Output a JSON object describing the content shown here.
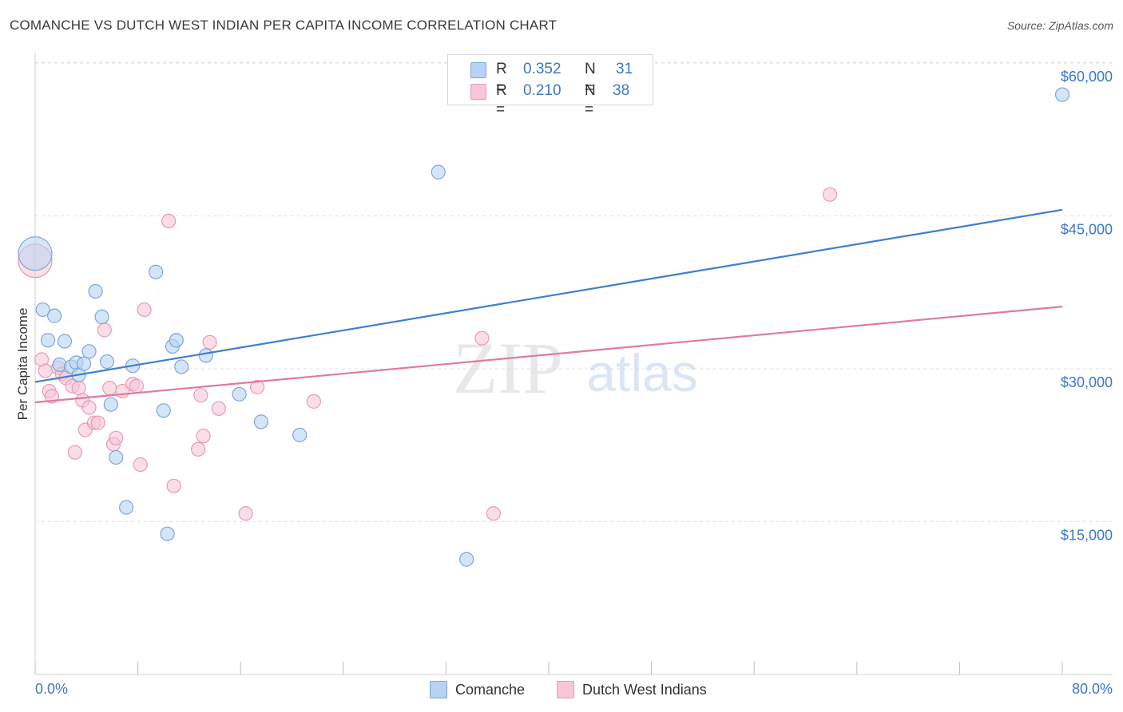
{
  "header": {
    "title": "COMANCHE VS DUTCH WEST INDIAN PER CAPITA INCOME CORRELATION CHART",
    "source": "Source: ZipAtlas.com"
  },
  "legend": {
    "r_label": "R =",
    "n_label": "N =",
    "series": [
      {
        "name": "Comanche",
        "r": "0.352",
        "n": "31"
      },
      {
        "name": "Dutch West Indians",
        "r": "0.210",
        "n": "38"
      }
    ]
  },
  "watermark": {
    "zip": "ZIP",
    "atlas": "atlas"
  },
  "colors": {
    "blue_fill": "#b8d3f3",
    "blue_stroke": "#7ea6da",
    "blue_line": "#3d7fd0",
    "pink_fill": "#f9c6d5",
    "pink_stroke": "#e89ab2",
    "pink_line": "#e07aa0",
    "tick_label": "#3b78c9",
    "grid": "#e2e2e2"
  },
  "chart_data": {
    "type": "scatter",
    "title": "COMANCHE VS DUTCH WEST INDIAN PER CAPITA INCOME CORRELATION CHART",
    "xlabel": "",
    "ylabel": "Per Capita Income",
    "xlim": [
      0,
      80
    ],
    "ylim": [
      0,
      62000
    ],
    "x_tick_labels": [
      "0.0%",
      "80.0%"
    ],
    "y_ticks": [
      15000,
      30000,
      45000,
      60000
    ],
    "y_tick_labels": [
      "$15,000",
      "$30,000",
      "$45,000",
      "$60,000"
    ],
    "grid": true,
    "legend_position": "top-center",
    "series": [
      {
        "name": "Comanche",
        "color": "blue",
        "r": 0.352,
        "n": 31,
        "trend": {
          "x": [
            0,
            80
          ],
          "y": [
            28700,
            45600
          ]
        },
        "points": [
          {
            "x": 0.0,
            "y": 41300,
            "big": true
          },
          {
            "x": 0.6,
            "y": 35800
          },
          {
            "x": 1.0,
            "y": 32800
          },
          {
            "x": 1.5,
            "y": 35200
          },
          {
            "x": 1.9,
            "y": 30400
          },
          {
            "x": 2.3,
            "y": 32700
          },
          {
            "x": 2.8,
            "y": 30200
          },
          {
            "x": 3.2,
            "y": 30600
          },
          {
            "x": 3.4,
            "y": 29400
          },
          {
            "x": 3.8,
            "y": 30500
          },
          {
            "x": 4.2,
            "y": 31700
          },
          {
            "x": 4.7,
            "y": 37600
          },
          {
            "x": 5.2,
            "y": 35100
          },
          {
            "x": 5.6,
            "y": 30700
          },
          {
            "x": 5.9,
            "y": 26500
          },
          {
            "x": 6.3,
            "y": 21300
          },
          {
            "x": 7.1,
            "y": 16400
          },
          {
            "x": 7.6,
            "y": 30300
          },
          {
            "x": 9.4,
            "y": 39500
          },
          {
            "x": 10.0,
            "y": 25900
          },
          {
            "x": 10.3,
            "y": 13800
          },
          {
            "x": 10.7,
            "y": 32200
          },
          {
            "x": 11.0,
            "y": 32800
          },
          {
            "x": 11.4,
            "y": 30200
          },
          {
            "x": 13.3,
            "y": 31300
          },
          {
            "x": 15.9,
            "y": 27500
          },
          {
            "x": 17.6,
            "y": 24800
          },
          {
            "x": 20.6,
            "y": 23500
          },
          {
            "x": 31.4,
            "y": 49300
          },
          {
            "x": 33.6,
            "y": 11300
          },
          {
            "x": 80.0,
            "y": 56900
          }
        ]
      },
      {
        "name": "Dutch West Indians",
        "color": "pink",
        "r": 0.21,
        "n": 38,
        "trend": {
          "x": [
            0,
            80
          ],
          "y": [
            26700,
            36100
          ]
        },
        "points": [
          {
            "x": 0.0,
            "y": 40600,
            "big": true
          },
          {
            "x": 0.5,
            "y": 30900
          },
          {
            "x": 0.8,
            "y": 29800
          },
          {
            "x": 1.1,
            "y": 27800
          },
          {
            "x": 1.3,
            "y": 27300
          },
          {
            "x": 1.8,
            "y": 30100
          },
          {
            "x": 2.1,
            "y": 29500
          },
          {
            "x": 2.4,
            "y": 29100
          },
          {
            "x": 2.9,
            "y": 28300
          },
          {
            "x": 3.1,
            "y": 21800
          },
          {
            "x": 3.4,
            "y": 28100
          },
          {
            "x": 3.7,
            "y": 26900
          },
          {
            "x": 3.9,
            "y": 24000
          },
          {
            "x": 4.2,
            "y": 26200
          },
          {
            "x": 4.6,
            "y": 24700
          },
          {
            "x": 4.9,
            "y": 24700
          },
          {
            "x": 5.4,
            "y": 33800
          },
          {
            "x": 5.8,
            "y": 28100
          },
          {
            "x": 6.1,
            "y": 22600
          },
          {
            "x": 6.3,
            "y": 23200
          },
          {
            "x": 6.8,
            "y": 27800
          },
          {
            "x": 7.6,
            "y": 28500
          },
          {
            "x": 7.9,
            "y": 28300
          },
          {
            "x": 8.2,
            "y": 20600
          },
          {
            "x": 8.5,
            "y": 35800
          },
          {
            "x": 10.4,
            "y": 44500
          },
          {
            "x": 10.8,
            "y": 18500
          },
          {
            "x": 12.7,
            "y": 22100
          },
          {
            "x": 12.9,
            "y": 27400
          },
          {
            "x": 13.1,
            "y": 23400
          },
          {
            "x": 13.6,
            "y": 32600
          },
          {
            "x": 14.3,
            "y": 26100
          },
          {
            "x": 16.4,
            "y": 15800
          },
          {
            "x": 17.3,
            "y": 28200
          },
          {
            "x": 21.7,
            "y": 26800
          },
          {
            "x": 34.8,
            "y": 33000
          },
          {
            "x": 35.7,
            "y": 15800
          },
          {
            "x": 61.9,
            "y": 47100
          }
        ]
      }
    ]
  }
}
